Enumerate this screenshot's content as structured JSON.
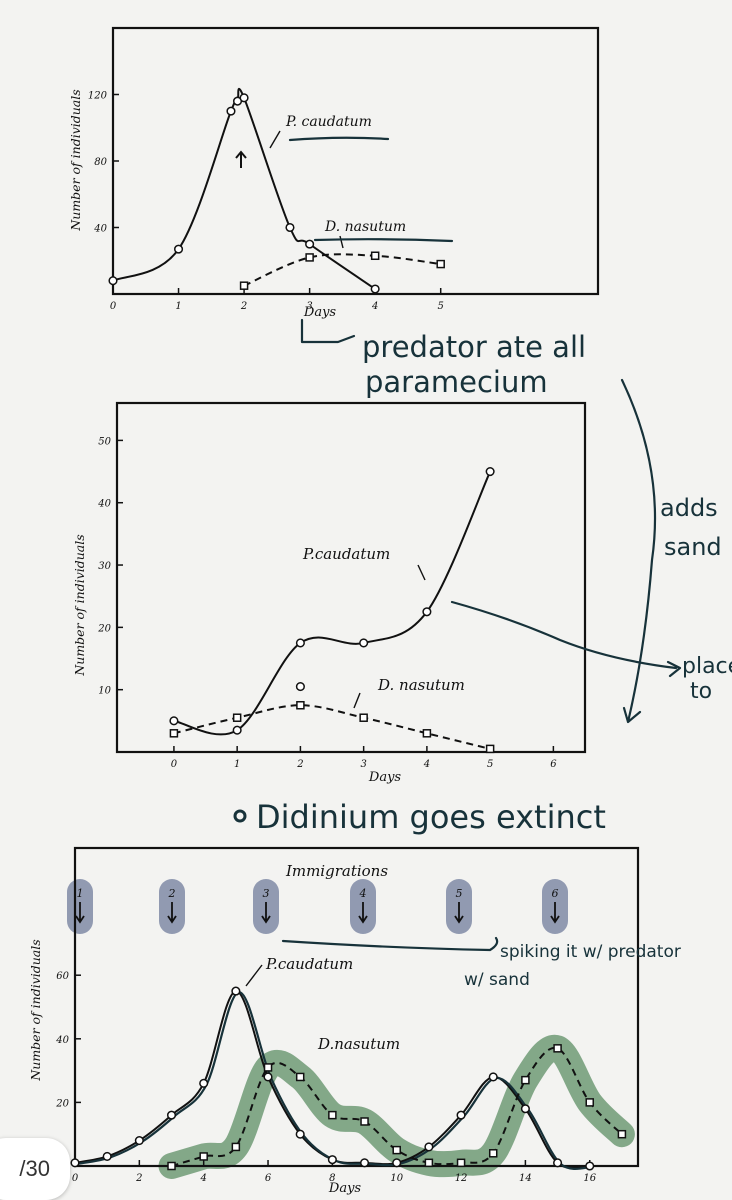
{
  "page_indicator": "/30",
  "colors": {
    "ink": "#17323a",
    "print": "#111111",
    "immigration_highlight": "#7f8aa6",
    "d_nasutum_highlight": "#6f9a76"
  },
  "chart_data": [
    {
      "type": "line",
      "xlabel": "Days",
      "ylabel": "Number of individuals",
      "xticks": [
        "0",
        "1",
        "2",
        "3",
        "4",
        "5"
      ],
      "yticks": [
        "40",
        "80",
        "120"
      ],
      "xlim": [
        0,
        7.4
      ],
      "ylim": [
        0,
        160
      ],
      "series": [
        {
          "name": "P. caudatum",
          "style": "solid",
          "marker": "circle",
          "x": [
            0,
            1,
            1.8,
            1.9,
            2.0,
            2.7,
            3.0,
            4.0
          ],
          "y": [
            8,
            27,
            110,
            116,
            118,
            40,
            30,
            3
          ]
        },
        {
          "name": "D. nasutum",
          "style": "dashed",
          "marker": "square",
          "x": [
            2.0,
            3.0,
            4.0,
            5.0
          ],
          "y": [
            5,
            22,
            23,
            18
          ]
        }
      ],
      "annotations": [
        "predator ate all paramecium"
      ]
    },
    {
      "type": "line",
      "xlabel": "Days",
      "ylabel": "Number of individuals",
      "xticks": [
        "0",
        "1",
        "2",
        "3",
        "4",
        "5",
        "6"
      ],
      "yticks": [
        "10",
        "20",
        "30",
        "40",
        "50"
      ],
      "xlim": [
        -0.9,
        6.5
      ],
      "ylim": [
        0,
        56
      ],
      "series": [
        {
          "name": "P.caudatum",
          "style": "solid",
          "marker": "circle",
          "x": [
            0,
            1,
            2,
            2,
            3,
            4,
            5
          ],
          "y": [
            5,
            3.5,
            17.5,
            10.5,
            17.5,
            22.5,
            45
          ]
        },
        {
          "name": "D. nasutum",
          "style": "dashed",
          "marker": "square",
          "x": [
            0,
            1,
            2,
            3,
            4,
            5
          ],
          "y": [
            3,
            5.5,
            7.5,
            5.5,
            3,
            0.5
          ]
        }
      ],
      "annotations": [
        "adds sand",
        "place to",
        "Didinium goes extinct"
      ]
    },
    {
      "type": "line",
      "title": "Immigrations",
      "xlabel": "Days",
      "ylabel": "Number of individuals",
      "xticks": [
        "0",
        "2",
        "4",
        "6",
        "8",
        "10",
        "12",
        "14",
        "16"
      ],
      "yticks": [
        "20",
        "40",
        "60"
      ],
      "immigration_labels": [
        "1",
        "2",
        "3",
        "4",
        "5",
        "6"
      ],
      "xlim": [
        0,
        17.5
      ],
      "ylim": [
        0,
        100
      ],
      "series": [
        {
          "name": "P.caudatum",
          "style": "solid",
          "marker": "circle",
          "x": [
            0,
            1,
            2,
            3,
            4,
            5,
            6,
            7,
            8,
            9,
            10,
            11,
            12,
            13,
            14,
            15,
            16
          ],
          "y": [
            1,
            3,
            8,
            16,
            26,
            55,
            28,
            10,
            2,
            1,
            1,
            6,
            16,
            28,
            18,
            1,
            0
          ]
        },
        {
          "name": "D.nasutum",
          "style": "dashed",
          "marker": "square",
          "x": [
            3,
            4,
            5,
            6,
            7,
            8,
            9,
            10,
            11,
            12,
            13,
            14,
            15,
            16,
            17
          ],
          "y": [
            0,
            3,
            6,
            31,
            28,
            16,
            14,
            5,
            1,
            1,
            4,
            27,
            37,
            20,
            10
          ]
        }
      ],
      "annotations": [
        "spiking it w/ predator",
        "w/ sand"
      ]
    }
  ],
  "handwriting": {
    "chart1_note_line1": "predator ate all",
    "chart1_note_line2": "paramecium",
    "chart2_side_note_line1": "adds",
    "chart2_side_note_line2": "sand",
    "chart2_arrow_note_line1": "place",
    "chart2_arrow_note_line2": "to",
    "chart2_bottom_note": "Didinium goes extinct",
    "chart3_note_line1": "spiking it w/ predator",
    "chart3_note_line2": "w/ sand"
  }
}
